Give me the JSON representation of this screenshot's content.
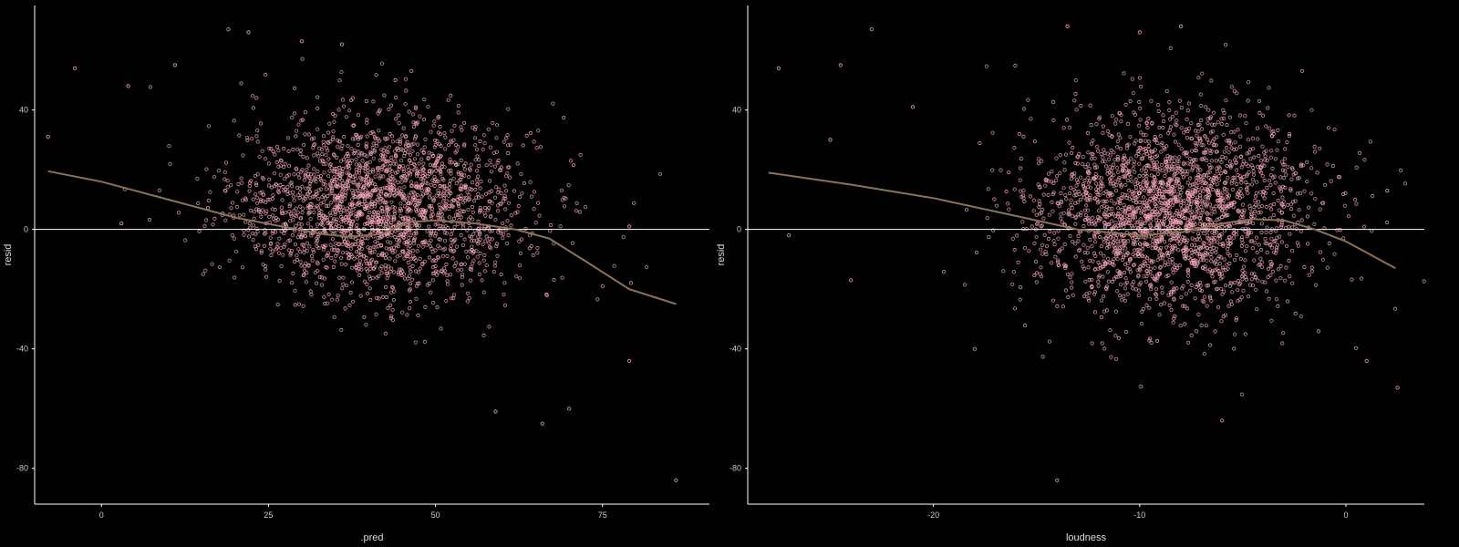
{
  "theme": {
    "background": "#000000",
    "point_color": "#f4a7b9",
    "smooth_color": "#8c7256",
    "hline_color": "#ffffff",
    "axis_color": "#ffffff"
  },
  "chart_data": [
    {
      "type": "scatter",
      "title": "",
      "xlabel": ".pred",
      "ylabel": "resid",
      "xlim": [
        -10,
        91
      ],
      "ylim": [
        -92,
        75
      ],
      "xticks": [
        0,
        25,
        50,
        75
      ],
      "yticks": [
        40,
        0,
        -40,
        -80
      ],
      "grid": false,
      "legend": "none",
      "hline": 0,
      "cloud": {
        "description_free_params": true,
        "center": [
          42,
          8
        ],
        "spread": [
          11,
          15
        ],
        "lower_bound_line": [
          [
            15,
            -15
          ],
          [
            56,
            -55
          ]
        ],
        "n_points": 2200
      },
      "outliers": [
        {
          "x": -8,
          "y": 31
        },
        {
          "x": -4,
          "y": 54
        },
        {
          "x": 4,
          "y": 48
        },
        {
          "x": 19,
          "y": 67
        },
        {
          "x": 22,
          "y": 66
        },
        {
          "x": 30,
          "y": 63
        },
        {
          "x": 86,
          "y": -84
        },
        {
          "x": 79,
          "y": -44
        },
        {
          "x": 70,
          "y": -60
        },
        {
          "x": 66,
          "y": -65
        },
        {
          "x": 59,
          "y": -61
        },
        {
          "x": 79,
          "y": 1
        },
        {
          "x": 3,
          "y": 2
        },
        {
          "x": 11,
          "y": 55
        },
        {
          "x": 36,
          "y": 62
        },
        {
          "x": 44,
          "y": 50
        }
      ],
      "smooth": {
        "x": [
          -8,
          0,
          10,
          20,
          27,
          33,
          37,
          42,
          46,
          50,
          56,
          62,
          67,
          72,
          79,
          86
        ],
        "y": [
          19.5,
          16,
          10,
          4,
          1,
          -1.5,
          -2.5,
          -1.5,
          2.5,
          3,
          2,
          0,
          -3,
          -10,
          -20,
          -25
        ]
      }
    },
    {
      "type": "scatter",
      "title": "",
      "xlabel": "loudness",
      "ylabel": "resid",
      "xlim": [
        -29,
        3.8
      ],
      "ylim": [
        -92,
        75
      ],
      "xticks": [
        -20,
        -10,
        0
      ],
      "yticks": [
        40,
        0,
        -40,
        -80
      ],
      "grid": false,
      "legend": "none",
      "hline": 0,
      "cloud": {
        "center": [
          -8.5,
          6
        ],
        "spread": [
          3.4,
          17
        ],
        "n_points": 2400
      },
      "outliers": [
        {
          "x": -27.5,
          "y": 54
        },
        {
          "x": -24.5,
          "y": 55
        },
        {
          "x": -23,
          "y": 67
        },
        {
          "x": -27,
          "y": -2
        },
        {
          "x": -24,
          "y": -17
        },
        {
          "x": -14,
          "y": -84
        },
        {
          "x": 2.5,
          "y": -53
        },
        {
          "x": 2,
          "y": 13
        },
        {
          "x": -10,
          "y": 66
        },
        {
          "x": -8,
          "y": 68
        },
        {
          "x": -13.5,
          "y": 68
        },
        {
          "x": -21,
          "y": 41
        },
        {
          "x": -6,
          "y": -64
        },
        {
          "x": -18,
          "y": -40
        },
        {
          "x": 1,
          "y": -44
        },
        {
          "x": -25,
          "y": 30
        }
      ],
      "smooth": {
        "x": [
          -28,
          -24,
          -20,
          -16,
          -13,
          -10,
          -8,
          -6,
          -4.5,
          -3,
          -1.5,
          0,
          2.4
        ],
        "y": [
          19,
          15,
          10.5,
          4.5,
          0,
          -2,
          -1,
          2,
          3.5,
          3,
          0,
          -4,
          -13
        ]
      }
    }
  ]
}
